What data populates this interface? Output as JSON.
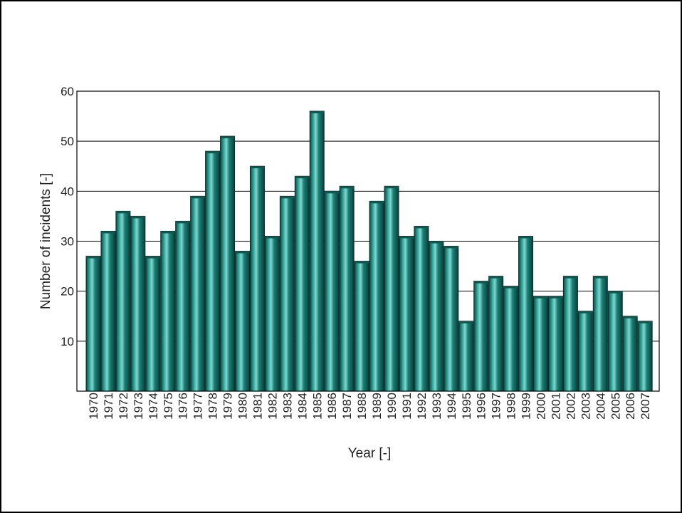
{
  "chart_data": {
    "type": "bar",
    "title": "",
    "xlabel": "Year [-]",
    "ylabel": "Number of incidents [-]",
    "ylim": [
      0,
      60
    ],
    "yticks": [
      10,
      20,
      30,
      40,
      50,
      60
    ],
    "grid": "horizontal",
    "bar_color": "#136b63",
    "categories": [
      "1970",
      "1971",
      "1972",
      "1973",
      "1974",
      "1975",
      "1976",
      "1977",
      "1978",
      "1979",
      "1980",
      "1981",
      "1982",
      "1983",
      "1984",
      "1985",
      "1986",
      "1987",
      "1988",
      "1989",
      "1990",
      "1991",
      "1992",
      "1993",
      "1994",
      "1995",
      "1996",
      "1997",
      "1998",
      "1999",
      "2000",
      "2001",
      "2002",
      "2003",
      "2004",
      "2005",
      "2006",
      "2007"
    ],
    "values": [
      27,
      32,
      36,
      35,
      27,
      32,
      34,
      39,
      48,
      51,
      28,
      45,
      31,
      39,
      43,
      56,
      40,
      41,
      26,
      38,
      41,
      31,
      33,
      30,
      29,
      14,
      22,
      23,
      21,
      31,
      19,
      19,
      23,
      16,
      23,
      20,
      15,
      14
    ]
  }
}
